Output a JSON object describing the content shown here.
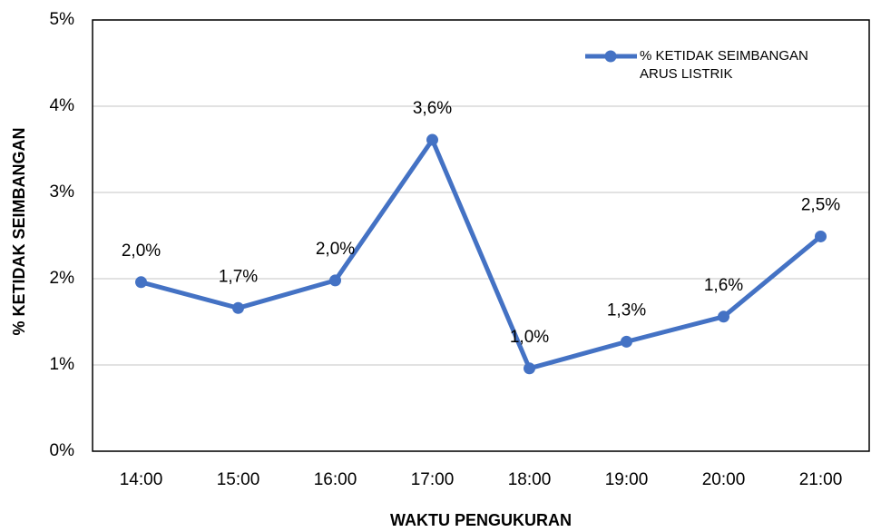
{
  "chart_data": {
    "type": "line",
    "xlabel": "WAKTU PENGUKURAN",
    "ylabel": "% KETIDAK SEIMBANGAN",
    "categories": [
      "14:00",
      "15:00",
      "16:00",
      "17:00",
      "18:00",
      "19:00",
      "20:00",
      "21:00"
    ],
    "series": [
      {
        "name": "% KETIDAK SEIMBANGAN ARUS LISTRIK",
        "color": "#4472c4",
        "values": [
          1.96,
          1.66,
          1.98,
          3.61,
          0.96,
          1.27,
          1.56,
          2.49
        ],
        "value_labels": [
          "2,0%",
          "1,7%",
          "2,0%",
          "3,6%",
          "1,0%",
          "1,3%",
          "1,6%",
          "2,5%"
        ]
      }
    ],
    "ylim": [
      0,
      5
    ],
    "yticks": [
      {
        "value": 0,
        "label": "0%"
      },
      {
        "value": 1,
        "label": "1%"
      },
      {
        "value": 2,
        "label": "2%"
      },
      {
        "value": 3,
        "label": "3%"
      },
      {
        "value": 4,
        "label": "4%"
      },
      {
        "value": 5,
        "label": "5%"
      }
    ],
    "grid": true,
    "legend": "upper right"
  }
}
